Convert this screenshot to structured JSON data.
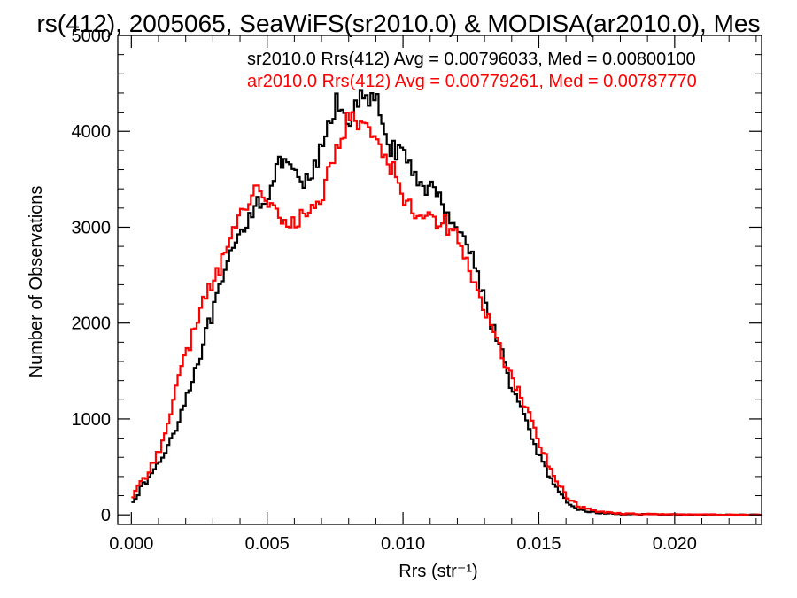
{
  "chart_data": {
    "type": "line",
    "title": "rs(412), 2005065, SeaWiFS(sr2010.0) & MODISA(ar2010.0), Mes",
    "xlabel": "Rrs (str⁻¹)",
    "ylabel": "Number of Observations",
    "xlim": [
      -0.0005,
      0.0232
    ],
    "ylim": [
      -100,
      5000
    ],
    "xticks": [
      "0.000",
      "0.005",
      "0.010",
      "0.015",
      "0.020"
    ],
    "xtick_values": [
      0,
      0.005,
      0.01,
      0.015,
      0.02
    ],
    "yticks": [
      "0",
      "1000",
      "2000",
      "3000",
      "4000",
      "5000"
    ],
    "ytick_values": [
      0,
      1000,
      2000,
      3000,
      4000,
      5000
    ],
    "grid": false,
    "annotations": [
      {
        "text": "sr2010.0 Rrs(412) Avg = 0.00796033, Med = 0.00800100",
        "color": "#000000"
      },
      {
        "text": "ar2010.0 Rrs(412) Avg = 0.00779261, Med = 0.00787770",
        "color": "#ff0000"
      }
    ],
    "series": [
      {
        "color": "#000000",
        "x": [
          0.0,
          0.0005,
          0.001,
          0.0015,
          0.002,
          0.0025,
          0.003,
          0.0035,
          0.004,
          0.0045,
          0.005,
          0.0055,
          0.006,
          0.0065,
          0.007,
          0.0075,
          0.008,
          0.0085,
          0.009,
          0.0095,
          0.01,
          0.0105,
          0.011,
          0.0115,
          0.012,
          0.0125,
          0.013,
          0.0135,
          0.014,
          0.0145,
          0.015,
          0.0155,
          0.016,
          0.0165,
          0.017,
          0.0175,
          0.018,
          0.019,
          0.02,
          0.021,
          0.022,
          0.0232
        ],
        "y": [
          150,
          350,
          550,
          850,
          1250,
          1700,
          2150,
          2600,
          2950,
          3250,
          3350,
          3700,
          3500,
          3450,
          3850,
          4300,
          4150,
          4350,
          4280,
          3850,
          3700,
          3500,
          3400,
          3200,
          3000,
          2700,
          2200,
          1750,
          1300,
          950,
          600,
          300,
          120,
          50,
          25,
          15,
          8,
          5,
          3,
          2,
          1,
          0
        ]
      },
      {
        "color": "#ff0000",
        "x": [
          0.0,
          0.0005,
          0.001,
          0.0015,
          0.002,
          0.0025,
          0.003,
          0.0035,
          0.004,
          0.0045,
          0.005,
          0.0055,
          0.006,
          0.0065,
          0.007,
          0.0075,
          0.008,
          0.0085,
          0.009,
          0.0095,
          0.01,
          0.0105,
          0.011,
          0.0115,
          0.012,
          0.0125,
          0.013,
          0.0135,
          0.014,
          0.0145,
          0.015,
          0.0155,
          0.016,
          0.0165,
          0.017,
          0.0175,
          0.018,
          0.019,
          0.02,
          0.021,
          0.022,
          0.0232
        ],
        "y": [
          200,
          400,
          700,
          1200,
          1700,
          2150,
          2450,
          2800,
          3150,
          3420,
          3300,
          3000,
          3050,
          3150,
          3350,
          3850,
          4150,
          4050,
          3950,
          3650,
          3300,
          3150,
          3100,
          3050,
          2900,
          2450,
          2100,
          1750,
          1400,
          1100,
          750,
          400,
          180,
          80,
          40,
          25,
          15,
          8,
          5,
          3,
          2,
          0
        ]
      }
    ]
  }
}
